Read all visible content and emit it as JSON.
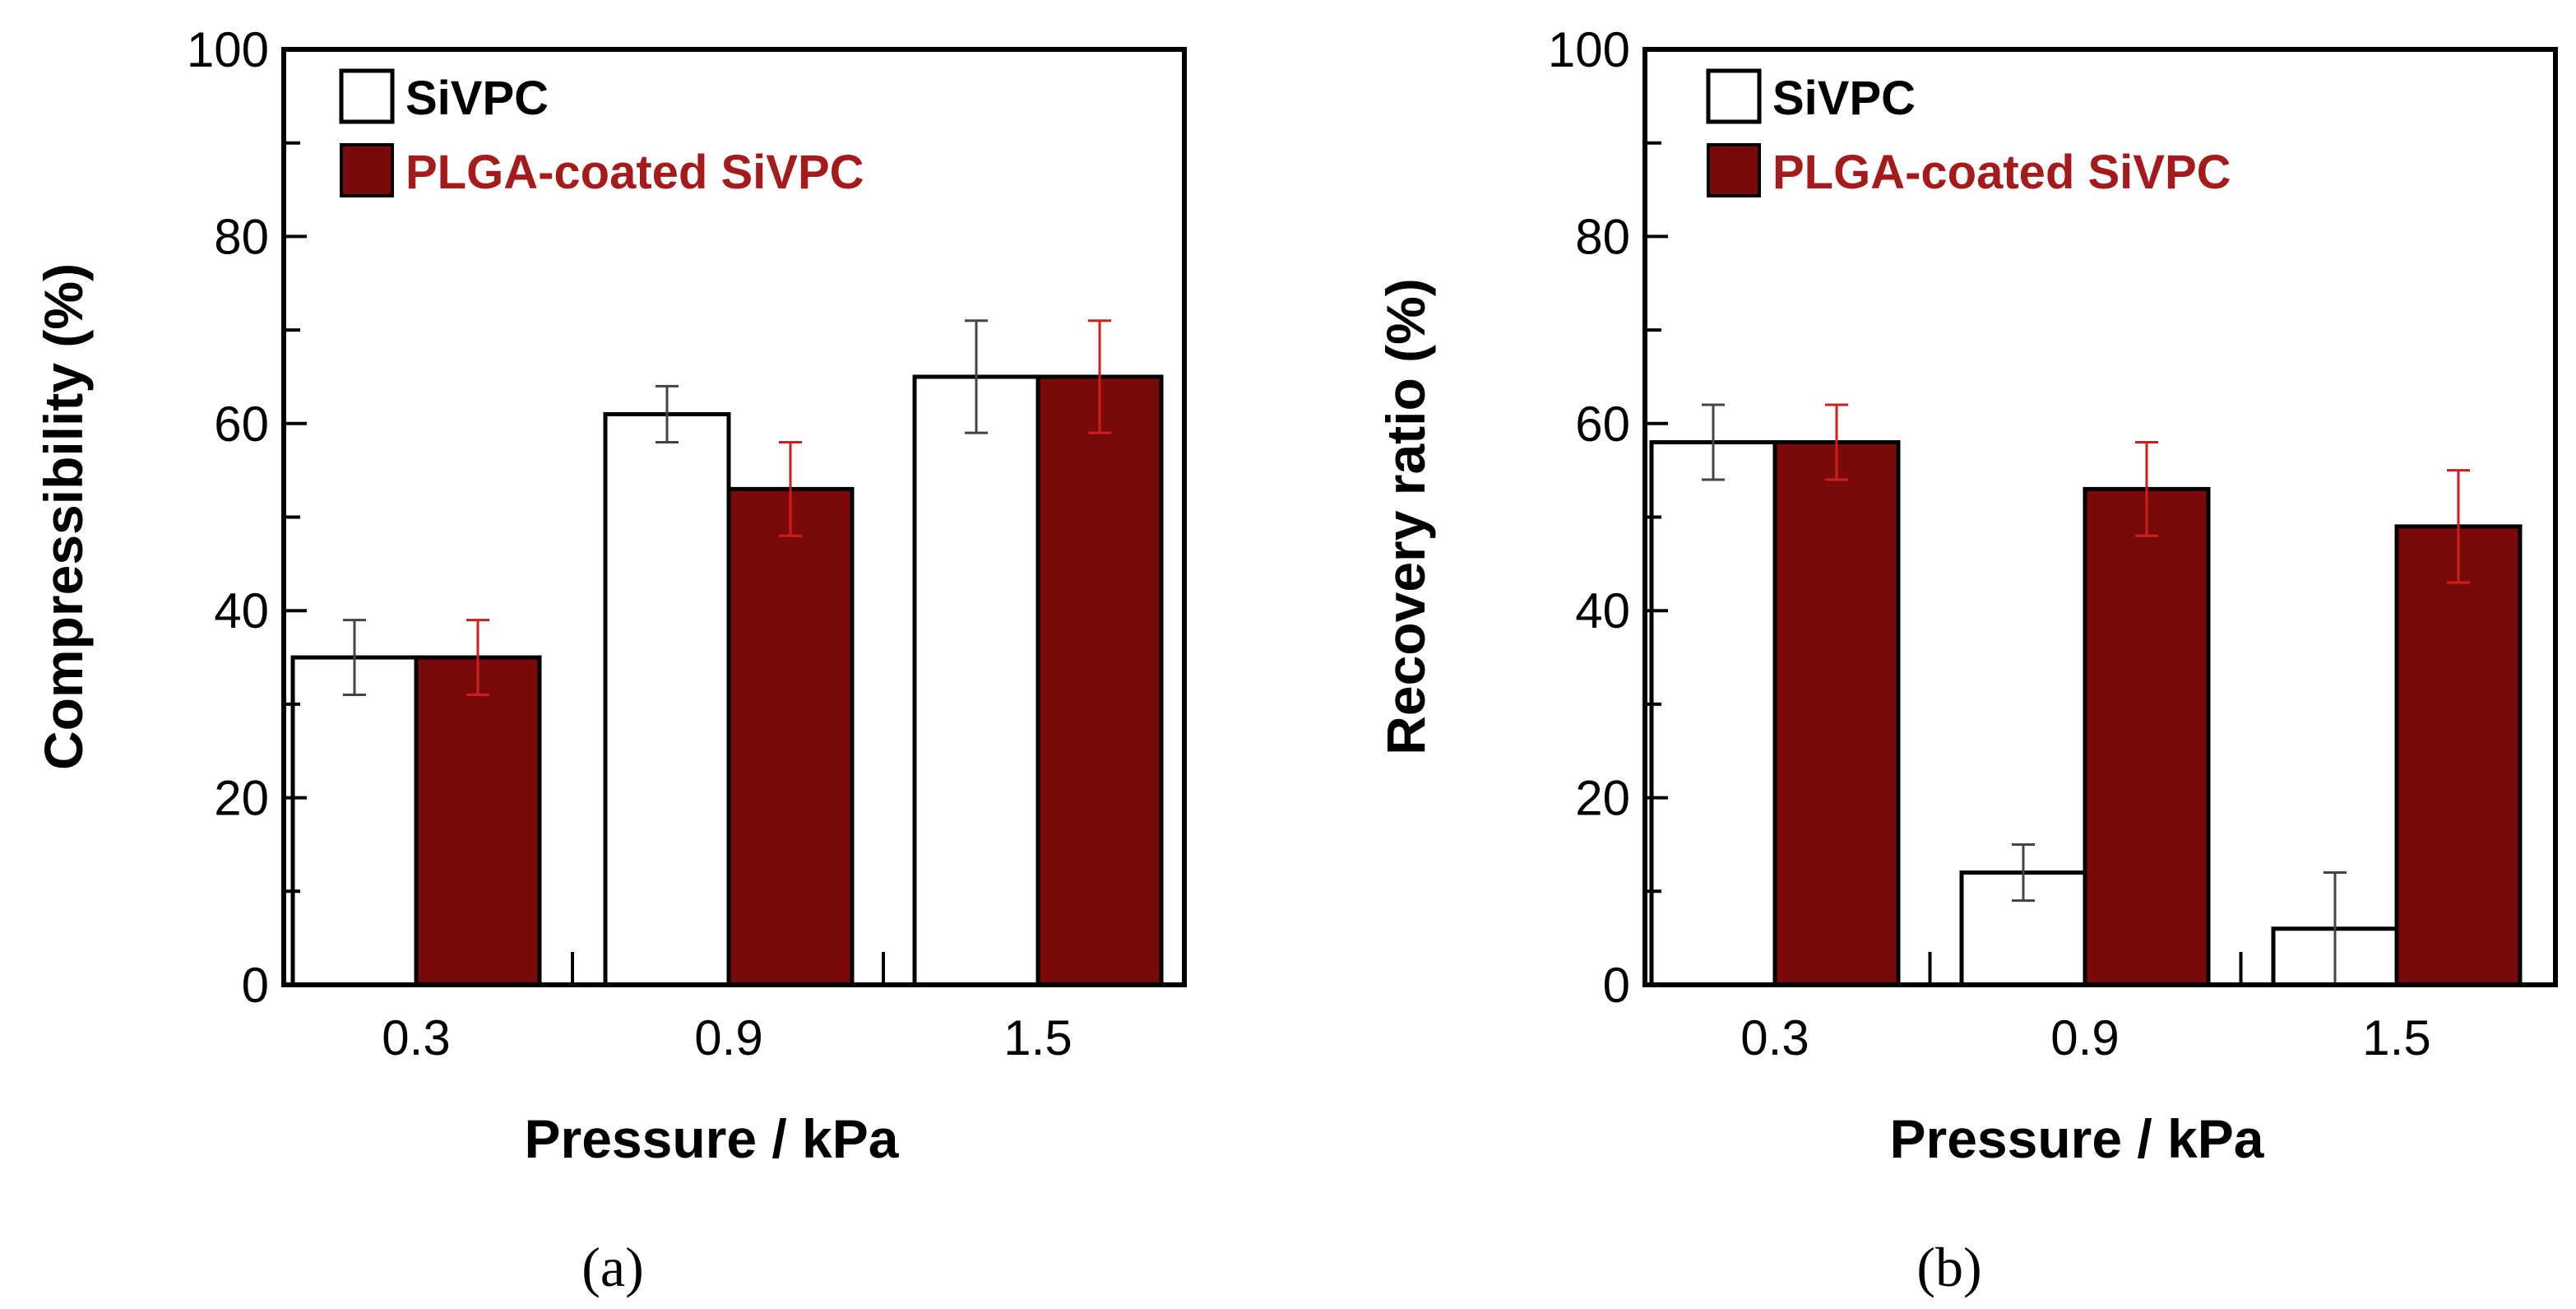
{
  "colors": {
    "siv": "#ffffff",
    "plga": "#7a0a0a",
    "plga_text": "#a51b1b",
    "err_siv": "#444444",
    "err_plga": "#d01e1e",
    "axis": "#000000"
  },
  "chart_data": [
    {
      "type": "bar",
      "panel_label": "(a)",
      "xlabel": "Pressure / kPa",
      "ylabel": "Compressibility (%)",
      "ylim": [
        0,
        100
      ],
      "yticks": [
        "0",
        "20",
        "40",
        "60",
        "80",
        "100"
      ],
      "categories": [
        "0.3",
        "0.9",
        "1.5"
      ],
      "legend_position": "top-left",
      "series": [
        {
          "name": "SiVPC",
          "values": [
            35,
            61,
            65
          ],
          "errors": [
            4,
            3,
            6
          ]
        },
        {
          "name": "PLGA-coated SiVPC",
          "values": [
            35,
            53,
            65
          ],
          "errors": [
            4,
            5,
            6
          ]
        }
      ]
    },
    {
      "type": "bar",
      "panel_label": "(b)",
      "xlabel": "Pressure / kPa",
      "ylabel": "Recovery ratio (%)",
      "ylim": [
        0,
        100
      ],
      "yticks": [
        "0",
        "20",
        "40",
        "60",
        "80",
        "100"
      ],
      "categories": [
        "0.3",
        "0.9",
        "1.5"
      ],
      "legend_position": "top-left",
      "series": [
        {
          "name": "SiVPC",
          "values": [
            58,
            12,
            6
          ],
          "errors": [
            4,
            3,
            6
          ]
        },
        {
          "name": "PLGA-coated SiVPC",
          "values": [
            58,
            53,
            49
          ],
          "errors": [
            4,
            5,
            6
          ]
        }
      ]
    }
  ]
}
